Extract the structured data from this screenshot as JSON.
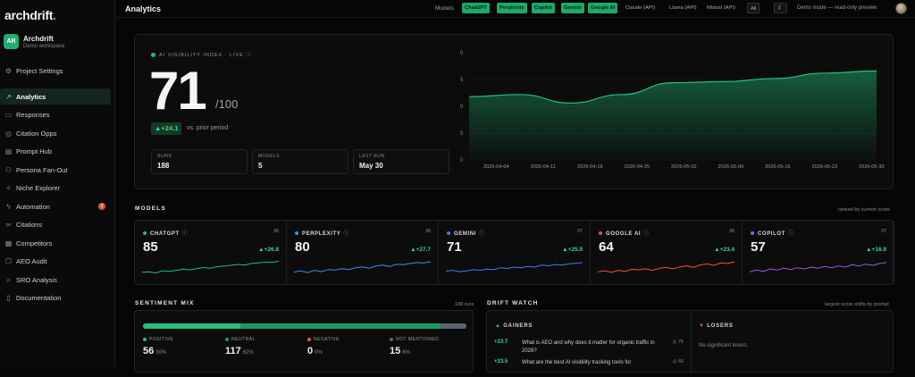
{
  "app": {
    "logo_text": "archdrift",
    "logo_dot": "."
  },
  "workspace": {
    "avatar": "AR",
    "name": "Archdrift",
    "subtitle": "Demo workspace"
  },
  "sidebar": {
    "items": [
      {
        "label": "Project Settings",
        "icon": "gear-icon"
      },
      {
        "label": "Analytics",
        "icon": "chart-icon",
        "active": true
      },
      {
        "label": "Responses",
        "icon": "message-icon"
      },
      {
        "label": "Citation Opps",
        "icon": "target-icon"
      },
      {
        "label": "Prompt Hub",
        "icon": "document-icon"
      },
      {
        "label": "Persona Fan-Out",
        "icon": "users-icon"
      },
      {
        "label": "Niche Explorer",
        "icon": "compass-icon"
      },
      {
        "label": "Automation",
        "icon": "bolt-icon",
        "badge": "3"
      },
      {
        "label": "Citations",
        "icon": "link-icon"
      },
      {
        "label": "Competitors",
        "icon": "grid-icon"
      },
      {
        "label": "AEO Audit",
        "icon": "clipboard-icon"
      },
      {
        "label": "SRO Analysis",
        "icon": "search-icon"
      },
      {
        "label": "Documentation",
        "icon": "book-icon"
      }
    ]
  },
  "topbar": {
    "title": "Analytics",
    "models_label": "Models",
    "chips": [
      {
        "label": "ChatGPT",
        "on": true
      },
      {
        "label": "Perplexity",
        "on": true
      },
      {
        "label": "Copilot",
        "on": true
      },
      {
        "label": "Gemini",
        "on": true
      },
      {
        "label": "Google AI",
        "on": true
      },
      {
        "label": "Claude (API)",
        "on": false
      },
      {
        "label": "Llama (API)",
        "on": false
      },
      {
        "label": "Mistral (API)",
        "on": false
      },
      {
        "label": "All",
        "on": false
      }
    ],
    "theme_icon": "moon-icon",
    "demo_text": "Demo mode — read-only preview"
  },
  "hero": {
    "label": "AI VISIBILITY INDEX · LIVE",
    "score": "71",
    "out_of": "/100",
    "delta": "▲+24.1",
    "delta_suffix": "vs. prior period",
    "stats": [
      {
        "key": "RUNS",
        "value": "188"
      },
      {
        "key": "MODELS",
        "value": "5"
      },
      {
        "key": "LAST RUN",
        "value": "May 30"
      }
    ]
  },
  "chart_data": {
    "type": "area",
    "y_tick_labels": [
      "0",
      "5",
      "0",
      "5",
      "0"
    ],
    "x": [
      "2026-04-04",
      "2026-04-11",
      "2026-04-18",
      "2026-04-25",
      "2026-05-02",
      "2026-05-09",
      "2026-05-16",
      "2026-05-23",
      "2026-05-30"
    ],
    "values": [
      59,
      61,
      53,
      61,
      72,
      73,
      76,
      81,
      83
    ],
    "ylim": [
      0,
      100
    ],
    "color": "#22c07a"
  },
  "models_section": {
    "title": "MODELS",
    "right": "ranked by current score"
  },
  "model_cards": [
    {
      "name": "CHATGPT",
      "color": "#22c07a",
      "count": "38",
      "score": "85",
      "change": "▲+26.8",
      "spark": [
        30,
        32,
        28,
        35,
        33,
        36,
        40,
        38,
        42,
        45,
        43,
        48,
        50,
        52,
        55,
        53,
        58,
        60,
        62,
        61,
        65
      ]
    },
    {
      "name": "PERPLEXITY",
      "color": "#3b8ff0",
      "count": "38",
      "score": "80",
      "change": "▲+27.7",
      "spark": [
        30,
        33,
        29,
        34,
        31,
        36,
        35,
        38,
        36,
        40,
        42,
        39,
        44,
        46,
        43,
        48,
        47,
        50,
        52,
        51,
        54
      ]
    },
    {
      "name": "GEMINI",
      "color": "#4a7af0",
      "count": "37",
      "score": "71",
      "change": "▲+25.9",
      "spark": [
        30,
        31,
        29,
        30,
        32,
        31,
        33,
        32,
        35,
        34,
        36,
        35,
        37,
        36,
        39,
        38,
        40,
        39,
        41,
        42,
        43
      ]
    },
    {
      "name": "GOOGLE AI",
      "color": "#ef5336",
      "count": "38",
      "score": "64",
      "change": "▲+23.4",
      "spark": [
        28,
        30,
        27,
        31,
        29,
        33,
        32,
        34,
        31,
        35,
        37,
        34,
        38,
        40,
        37,
        42,
        44,
        41,
        46,
        45,
        48
      ]
    },
    {
      "name": "COPILOT",
      "color": "#9b59e8",
      "count": "37",
      "score": "57",
      "change": "▲+16.9",
      "spark": [
        30,
        33,
        31,
        35,
        33,
        36,
        34,
        37,
        35,
        38,
        36,
        39,
        37,
        40,
        38,
        42,
        40,
        43,
        41,
        44,
        46
      ]
    }
  ],
  "sentiment": {
    "title": "SENTIMENT MIX",
    "runs": "188 runs",
    "segments": [
      {
        "key": "POSITIVE",
        "color": "#22c07a",
        "value": "56",
        "pct": "30%",
        "frac": 0.3
      },
      {
        "key": "NEUTRAL",
        "color": "#1c9a63",
        "value": "117",
        "pct": "62%",
        "frac": 0.62
      },
      {
        "key": "NEGATIVE",
        "color": "#ef5336",
        "value": "0",
        "pct": "0%",
        "frac": 0.0
      },
      {
        "key": "NOT MENTIONED",
        "color": "#5a6470",
        "value": "15",
        "pct": "8%",
        "frac": 0.08
      }
    ]
  },
  "drift": {
    "title": "DRIFT WATCH",
    "right": "largest score shifts by prompt",
    "gainers_label": "GAINERS",
    "losers_label": "LOSERS",
    "gainers": [
      {
        "change": "+23.7",
        "question": "What is AEO and why does it matter for organic traffic in 2026?",
        "score": "◎ 75"
      },
      {
        "change": "+23.5",
        "question": "What are the best AI visibility tracking tools for",
        "score": "◎ 66"
      }
    ],
    "no_losers": "No significant losers."
  }
}
